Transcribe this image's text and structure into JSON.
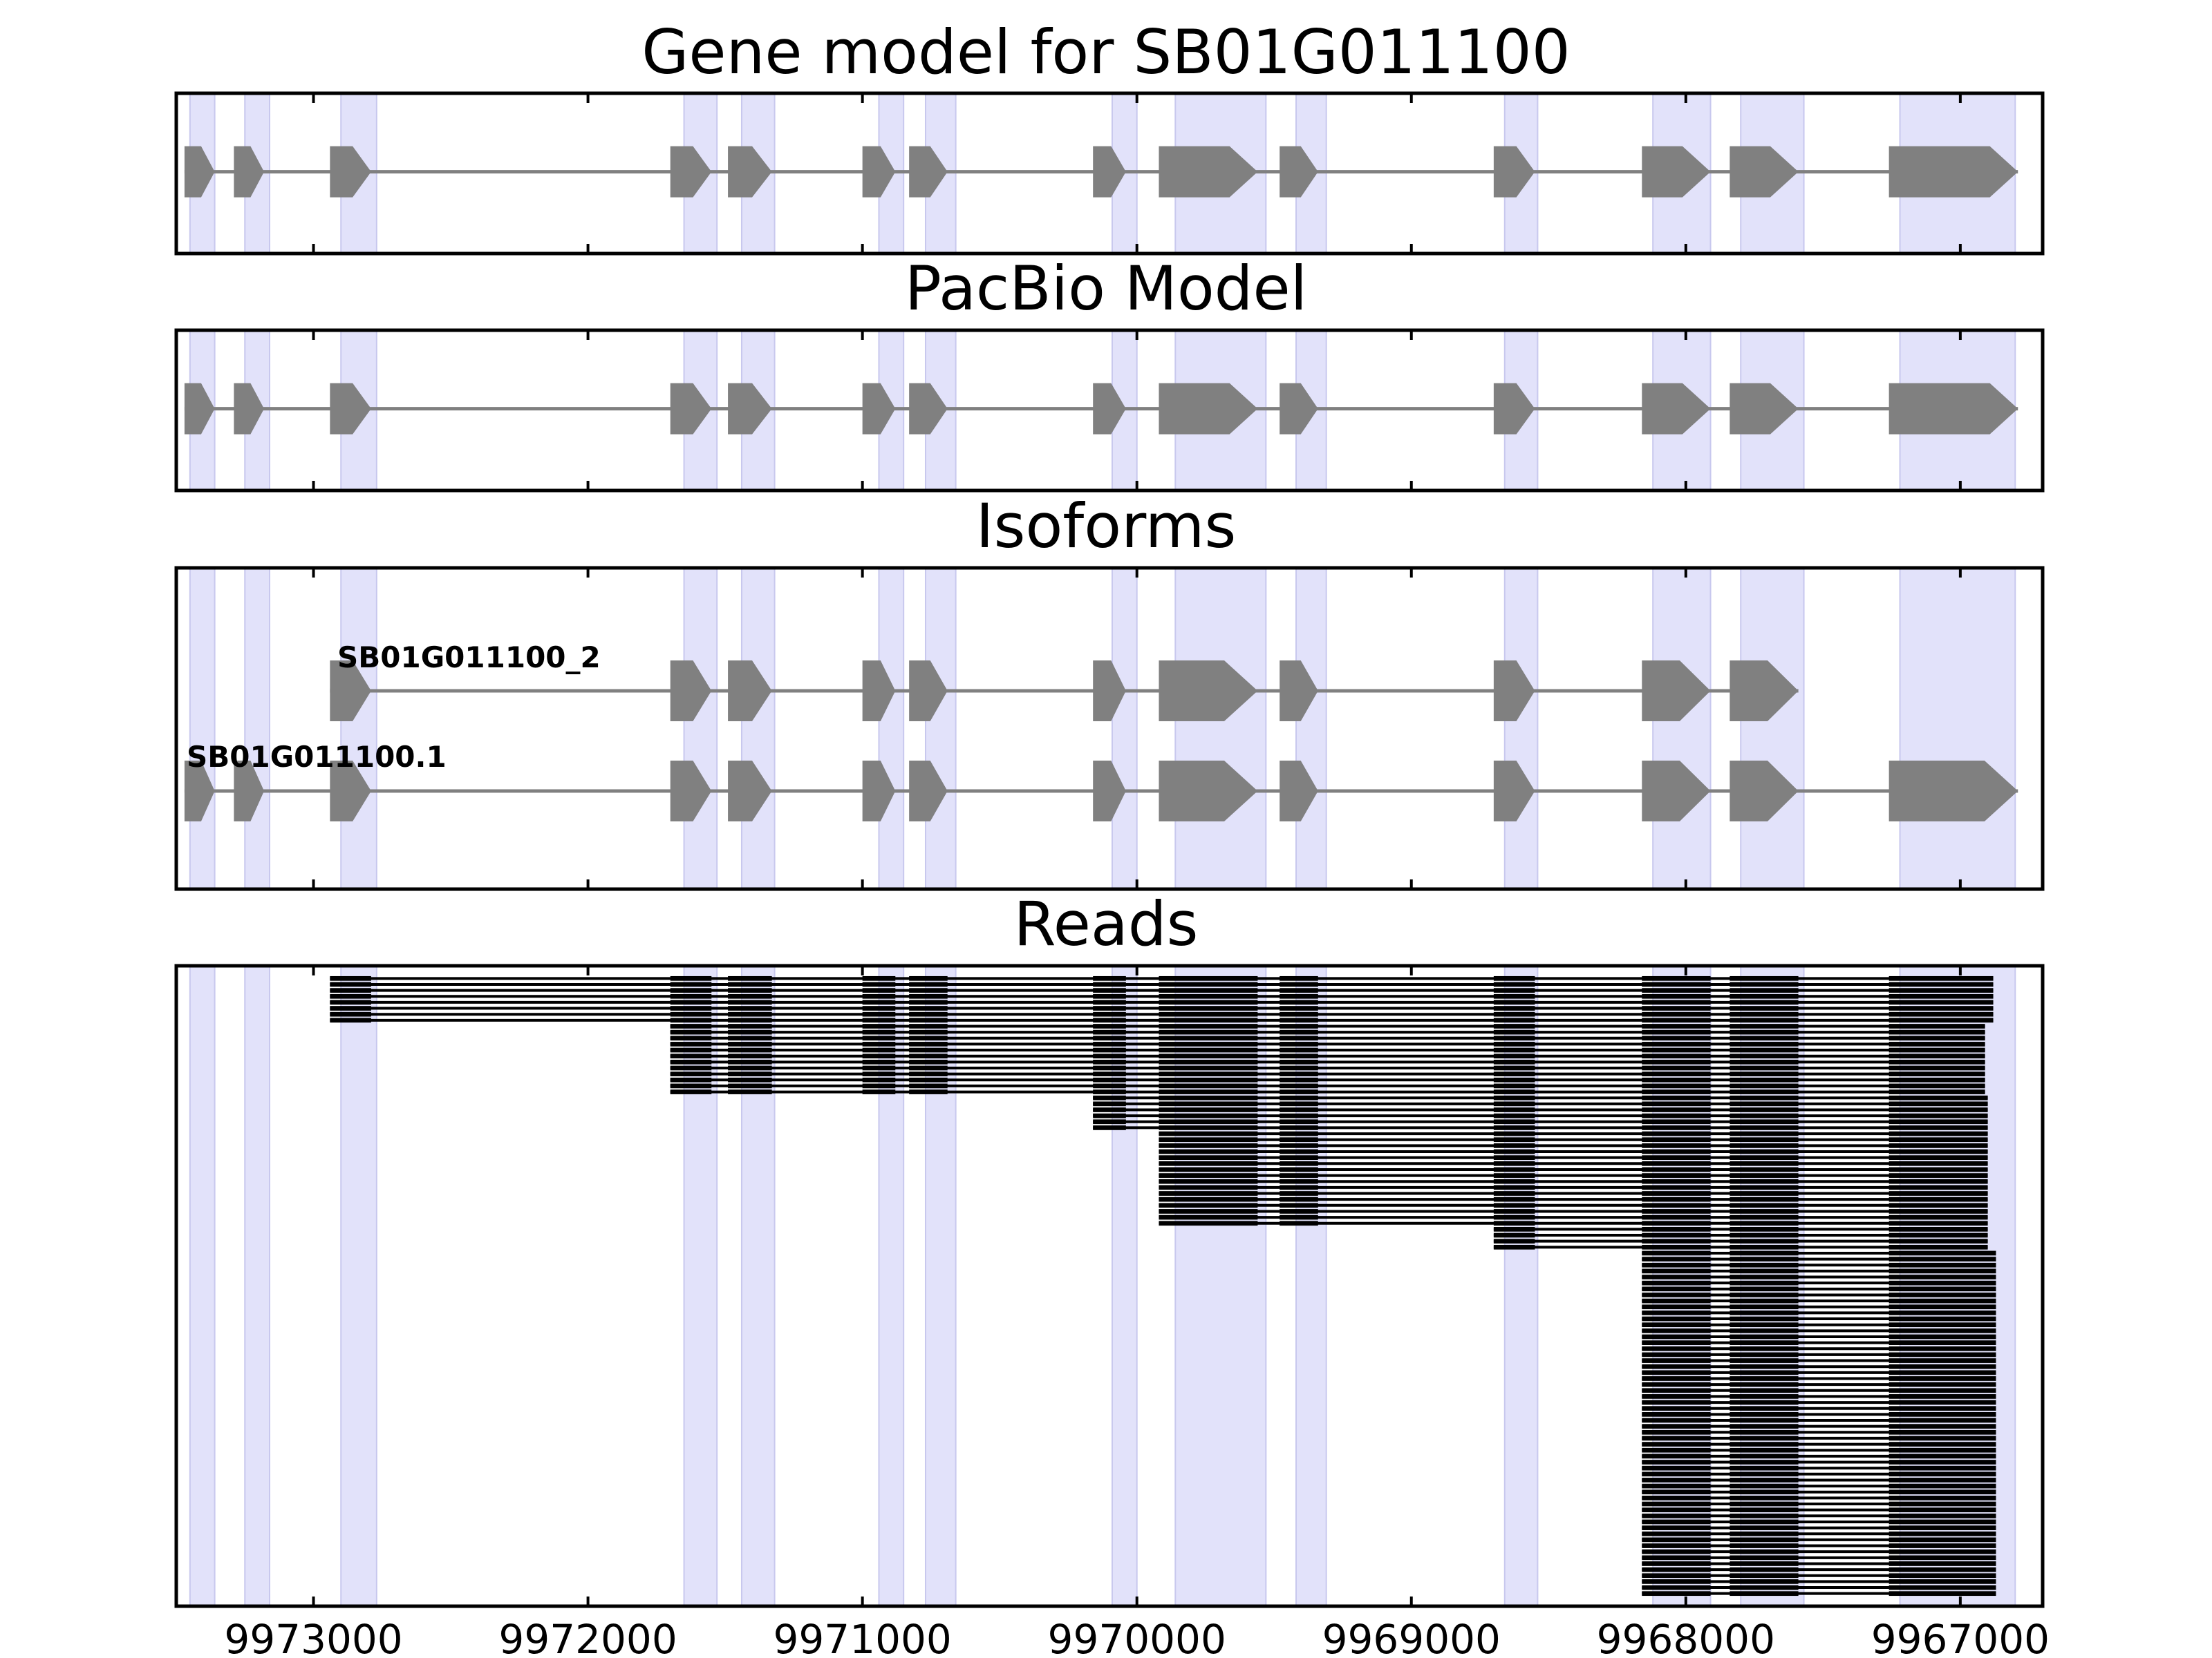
{
  "chart_data": {
    "type": "gene-model-track",
    "xlim": [
      9973500,
      9966700
    ],
    "x_ticks": [
      9973000,
      9972000,
      9971000,
      9970000,
      9969000,
      9968000,
      9967000
    ],
    "x_tick_labels": [
      "9973000",
      "9972000",
      "9971000",
      "9970000",
      "9969000",
      "9968000",
      "9967000"
    ],
    "highlight_color": "#e2e2fa",
    "feature_color": "#808080",
    "read_color": "#000000",
    "highlight_regions": [
      [
        9973450,
        9973360
      ],
      [
        9973250,
        9973160
      ],
      [
        9972900,
        9972770
      ],
      [
        9971650,
        9971530
      ],
      [
        9971440,
        9971320
      ],
      [
        9970940,
        9970850
      ],
      [
        9970770,
        9970660
      ],
      [
        9970090,
        9970000
      ],
      [
        9969860,
        9969530
      ],
      [
        9969420,
        9969310
      ],
      [
        9968660,
        9968540
      ],
      [
        9968120,
        9967910
      ],
      [
        9967800,
        9967570
      ],
      [
        9967220,
        9966800
      ]
    ],
    "exons": [
      [
        9973470,
        9973360
      ],
      [
        9973290,
        9973180
      ],
      [
        9972940,
        9972790
      ],
      [
        9971700,
        9971550
      ],
      [
        9971490,
        9971330
      ],
      [
        9971000,
        9970880
      ],
      [
        9970830,
        9970690
      ],
      [
        9970160,
        9970040
      ],
      [
        9969920,
        9969560
      ],
      [
        9969480,
        9969340
      ],
      [
        9968700,
        9968550
      ],
      [
        9968160,
        9967910
      ],
      [
        9967840,
        9967590
      ],
      [
        9967260,
        9966790
      ]
    ],
    "panels": [
      {
        "title": "Gene model for SB01G011100",
        "kind": "gene",
        "first_exon": 0,
        "last_exon": 13
      },
      {
        "title": "PacBio Model",
        "kind": "gene",
        "first_exon": 0,
        "last_exon": 13
      },
      {
        "title": "Isoforms",
        "kind": "isoforms"
      },
      {
        "title": "Reads",
        "kind": "reads"
      }
    ],
    "isoforms": [
      {
        "name": "SB01G011100_2",
        "first_exon": 2,
        "last_exon": 12
      },
      {
        "name": "SB01G011100.1",
        "first_exon": 0,
        "last_exon": 13
      }
    ],
    "read_groups": [
      {
        "count": 8,
        "first_exon": 2,
        "last_exon": 13,
        "end_start": 9966880,
        "end_step": 0
      },
      {
        "count": 12,
        "first_exon": 3,
        "last_exon": 13,
        "end_start": 9966910,
        "end_step": 0
      },
      {
        "count": 6,
        "first_exon": 7,
        "last_exon": 13,
        "end_start": 9966900,
        "end_step": 0
      },
      {
        "count": 16,
        "first_exon": 8,
        "last_exon": 13,
        "end_start": 9966900,
        "end_step": 0
      },
      {
        "count": 4,
        "first_exon": 10,
        "last_exon": 13,
        "end_start": 9966900,
        "end_step": 0
      },
      {
        "count": 58,
        "first_exon": 11,
        "last_exon": 13,
        "end_start": 9966870,
        "end_step": 0
      }
    ]
  }
}
